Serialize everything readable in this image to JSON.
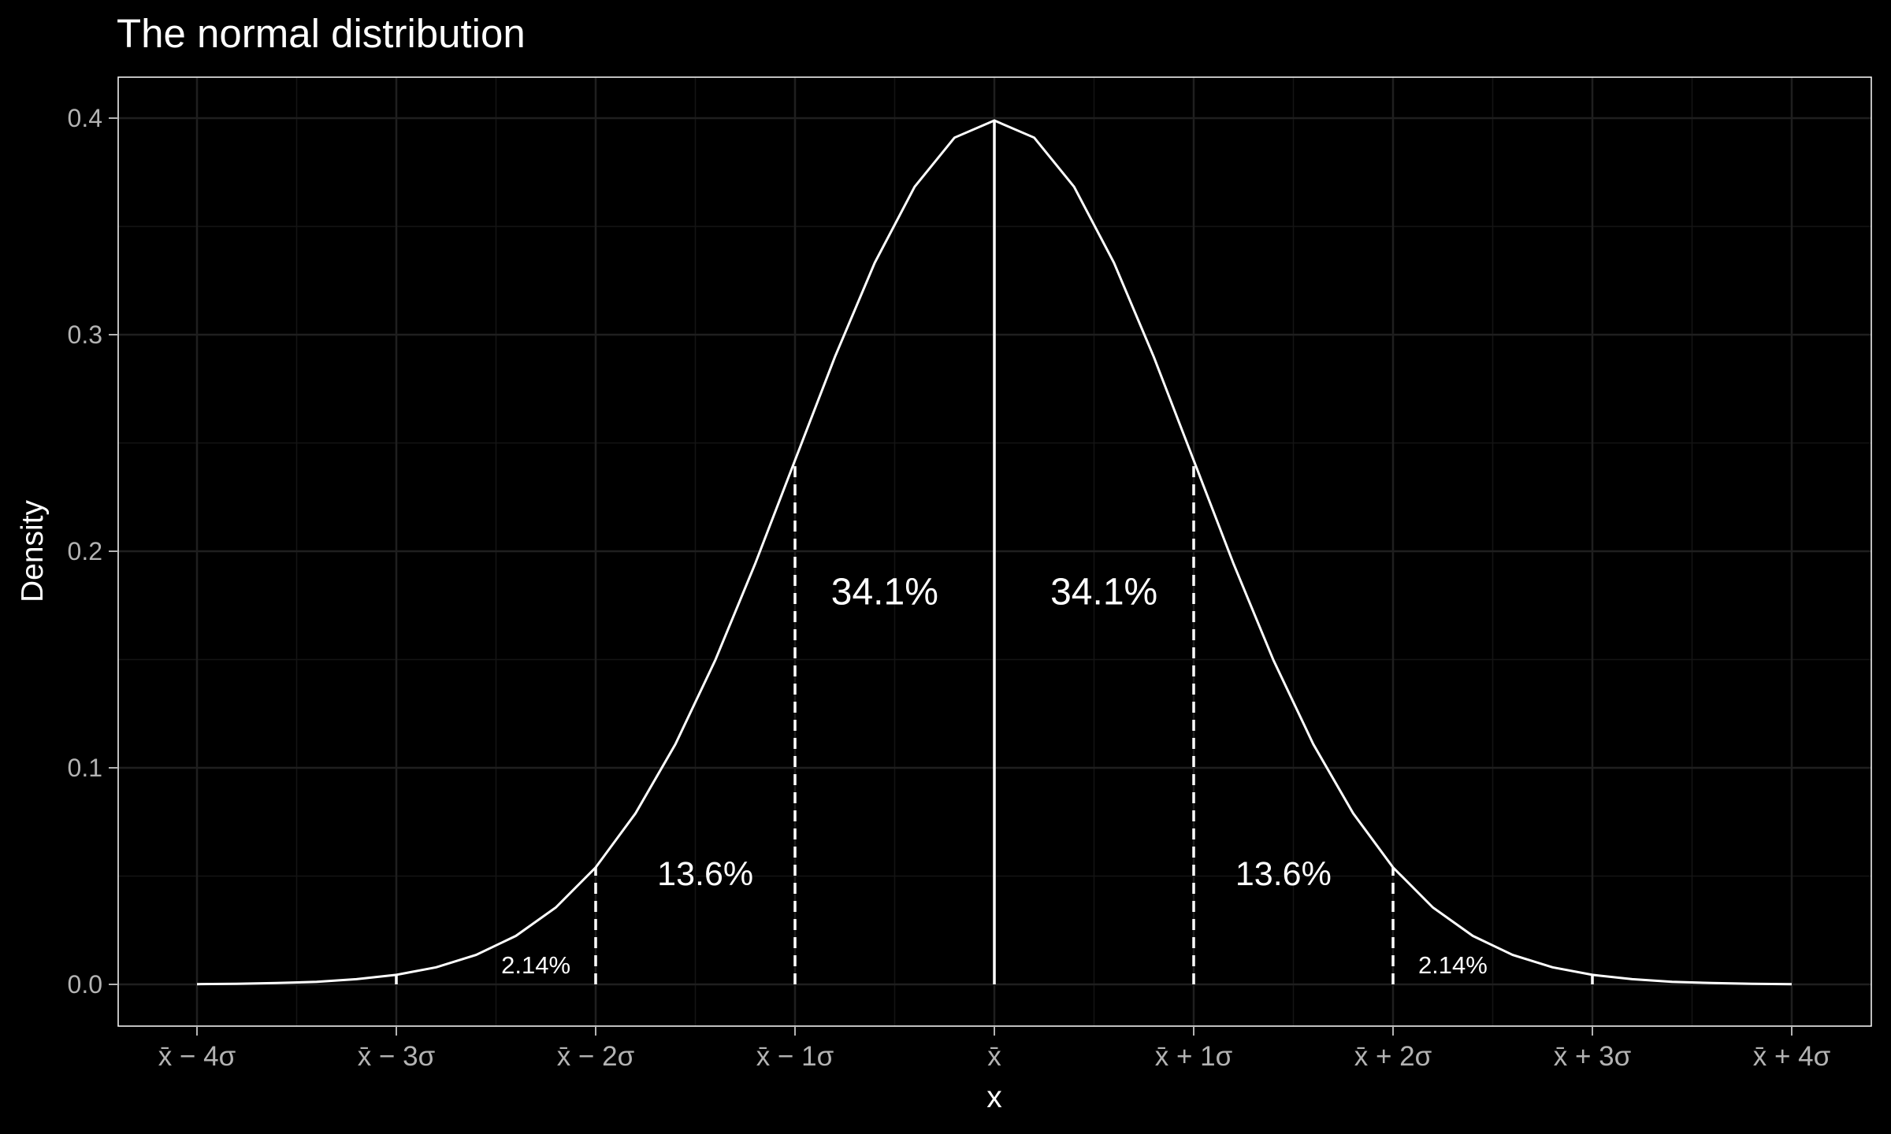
{
  "chart_data": {
    "type": "line",
    "title": "The normal distribution",
    "xlabel": "x",
    "ylabel": "Density",
    "xlim": [
      -4,
      4
    ],
    "ylim": [
      0,
      0.4
    ],
    "grid": true,
    "colors": {
      "background": "#000000",
      "curve": "#ffffff",
      "grid": "#1f1f1f",
      "tick_text": "#b3b3b3"
    },
    "x_ticks": [
      {
        "value": -4,
        "label": "x̄ − 4σ"
      },
      {
        "value": -3,
        "label": "x̄ − 3σ"
      },
      {
        "value": -2,
        "label": "x̄ − 2σ"
      },
      {
        "value": -1,
        "label": "x̄ − 1σ"
      },
      {
        "value": 0,
        "label": "x̄"
      },
      {
        "value": 1,
        "label": "x̄ + 1σ"
      },
      {
        "value": 2,
        "label": "x̄ + 2σ"
      },
      {
        "value": 3,
        "label": "x̄ + 3σ"
      },
      {
        "value": 4,
        "label": "x̄ + 4σ"
      }
    ],
    "y_ticks": [
      {
        "value": 0.0,
        "label": "0.0"
      },
      {
        "value": 0.1,
        "label": "0.1"
      },
      {
        "value": 0.2,
        "label": "0.2"
      },
      {
        "value": 0.3,
        "label": "0.3"
      },
      {
        "value": 0.4,
        "label": "0.4"
      }
    ],
    "series": [
      {
        "x": [
          -4,
          -3.8,
          -3.6,
          -3.4,
          -3.2,
          -3,
          -2.8,
          -2.6,
          -2.4,
          -2.2,
          -2,
          -1.8,
          -1.6,
          -1.4,
          -1.2,
          -1,
          -0.8,
          -0.6,
          -0.4,
          -0.2,
          0,
          0.2,
          0.4,
          0.6,
          0.8,
          1,
          1.2,
          1.4,
          1.6,
          1.8,
          2,
          2.2,
          2.4,
          2.6,
          2.8,
          3,
          3.2,
          3.4,
          3.6,
          3.8,
          4
        ],
        "y": [
          0.0001,
          0.0003,
          0.0006,
          0.0012,
          0.0024,
          0.0044,
          0.0079,
          0.0136,
          0.0224,
          0.0355,
          0.054,
          0.079,
          0.1109,
          0.1497,
          0.1942,
          0.242,
          0.2897,
          0.3332,
          0.3683,
          0.391,
          0.3989,
          0.391,
          0.3683,
          0.3332,
          0.2897,
          0.242,
          0.1942,
          0.1497,
          0.1109,
          0.079,
          0.054,
          0.0355,
          0.0224,
          0.0136,
          0.0079,
          0.0044,
          0.0024,
          0.0012,
          0.0006,
          0.0003,
          0.0001
        ]
      }
    ],
    "vlines": [
      {
        "x": -2,
        "y_top": 0.054,
        "style": "dashed"
      },
      {
        "x": -1,
        "y_top": 0.242,
        "style": "dashed"
      },
      {
        "x": 0,
        "y_top": 0.3989,
        "style": "solid"
      },
      {
        "x": 1,
        "y_top": 0.242,
        "style": "dashed"
      },
      {
        "x": 2,
        "y_top": 0.054,
        "style": "dashed"
      },
      {
        "x": -3,
        "y_top": 0.0044,
        "style": "solid"
      },
      {
        "x": 3,
        "y_top": 0.0044,
        "style": "solid"
      }
    ],
    "annotations": [
      {
        "text": "34.1%",
        "x": -0.55,
        "y": 0.18,
        "size": "big"
      },
      {
        "text": "34.1%",
        "x": 0.55,
        "y": 0.18,
        "size": "big"
      },
      {
        "text": "13.6%",
        "x": -1.45,
        "y": 0.05,
        "size": "mid"
      },
      {
        "text": "13.6%",
        "x": 1.45,
        "y": 0.05,
        "size": "mid"
      },
      {
        "text": "2.14%",
        "x": -2.3,
        "y": 0.008,
        "size": "small"
      },
      {
        "text": "2.14%",
        "x": 2.3,
        "y": 0.008,
        "size": "small"
      }
    ]
  }
}
